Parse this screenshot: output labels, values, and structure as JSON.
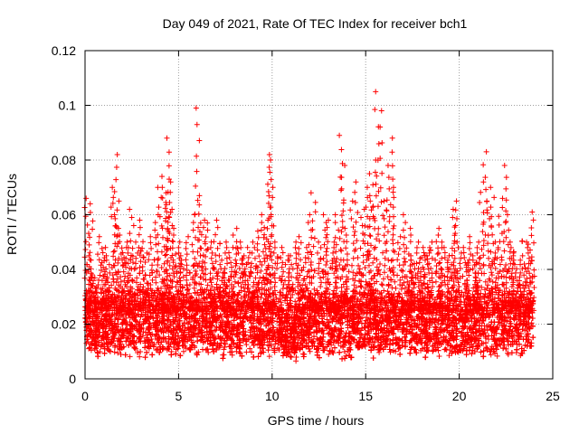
{
  "chart_data": {
    "type": "scatter",
    "title": "Day 049 of 2021, Rate Of TEC Index for receiver bch1",
    "xlabel": "GPS time / hours",
    "ylabel": "ROTI / TECUs",
    "xlim": [
      0,
      25
    ],
    "ylim": [
      0,
      0.12
    ],
    "x_ticks": [
      "0",
      "5",
      "10",
      "15",
      "20",
      "25"
    ],
    "y_ticks": [
      "0",
      "0.02",
      "0.04",
      "0.06",
      "0.08",
      "0.1",
      "0.12"
    ],
    "grid": true,
    "legend": "none",
    "marker": "plus",
    "series_color": "#ff0000",
    "series": [
      {
        "x": [
          0.1,
          0.2,
          0.3,
          0.5,
          0.8,
          1.0,
          1.2,
          1.5,
          1.6,
          1.7,
          1.9,
          2.1,
          2.3,
          2.5,
          2.8,
          3.0,
          3.2,
          3.5,
          3.8,
          4.0,
          4.2,
          4.3,
          4.4,
          4.5,
          4.6,
          4.8,
          5.0,
          5.2,
          5.5,
          5.8,
          6.0,
          6.2,
          6.3,
          6.5,
          6.8,
          7.0,
          7.3,
          7.5,
          7.8,
          8.0,
          8.3,
          8.5,
          8.8,
          9.0,
          9.3,
          9.5,
          9.7,
          9.8,
          9.9,
          10.0,
          10.2,
          10.5,
          10.8,
          11.0,
          11.3,
          11.5,
          11.8,
          12.0,
          12.2,
          12.5,
          12.8,
          13.0,
          13.3,
          13.5,
          13.7,
          13.8,
          14.0,
          14.3,
          14.5,
          14.8,
          15.0,
          15.2,
          15.3,
          15.5,
          15.6,
          15.8,
          16.0,
          16.2,
          16.4,
          16.5,
          16.8,
          17.0,
          17.3,
          17.5,
          17.8,
          18.0,
          18.3,
          18.5,
          18.8,
          19.0,
          19.3,
          19.5,
          19.7,
          19.8,
          20.0,
          20.3,
          20.5,
          20.8,
          21.0,
          21.2,
          21.4,
          21.6,
          21.8,
          22.0,
          22.2,
          22.4,
          22.6,
          22.8,
          23.0,
          23.3,
          23.5,
          23.7,
          23.9
        ],
        "y": [
          0.066,
          0.045,
          0.064,
          0.038,
          0.052,
          0.048,
          0.045,
          0.07,
          0.082,
          0.065,
          0.055,
          0.048,
          0.05,
          0.062,
          0.05,
          0.058,
          0.046,
          0.052,
          0.06,
          0.07,
          0.074,
          0.068,
          0.088,
          0.072,
          0.062,
          0.055,
          0.05,
          0.045,
          0.052,
          0.06,
          0.099,
          0.067,
          0.058,
          0.057,
          0.05,
          0.058,
          0.045,
          0.05,
          0.048,
          0.055,
          0.05,
          0.045,
          0.048,
          0.05,
          0.054,
          0.06,
          0.058,
          0.08,
          0.082,
          0.07,
          0.05,
          0.048,
          0.045,
          0.045,
          0.05,
          0.052,
          0.048,
          0.06,
          0.068,
          0.05,
          0.06,
          0.058,
          0.05,
          0.06,
          0.089,
          0.078,
          0.055,
          0.065,
          0.072,
          0.062,
          0.07,
          0.065,
          0.075,
          0.08,
          0.105,
          0.098,
          0.065,
          0.078,
          0.088,
          0.07,
          0.052,
          0.06,
          0.055,
          0.045,
          0.05,
          0.048,
          0.045,
          0.05,
          0.055,
          0.05,
          0.048,
          0.045,
          0.062,
          0.065,
          0.05,
          0.048,
          0.052,
          0.045,
          0.05,
          0.072,
          0.083,
          0.065,
          0.07,
          0.05,
          0.066,
          0.078,
          0.06,
          0.05,
          0.045,
          0.045,
          0.042,
          0.05,
          0.061
        ]
      }
    ]
  }
}
